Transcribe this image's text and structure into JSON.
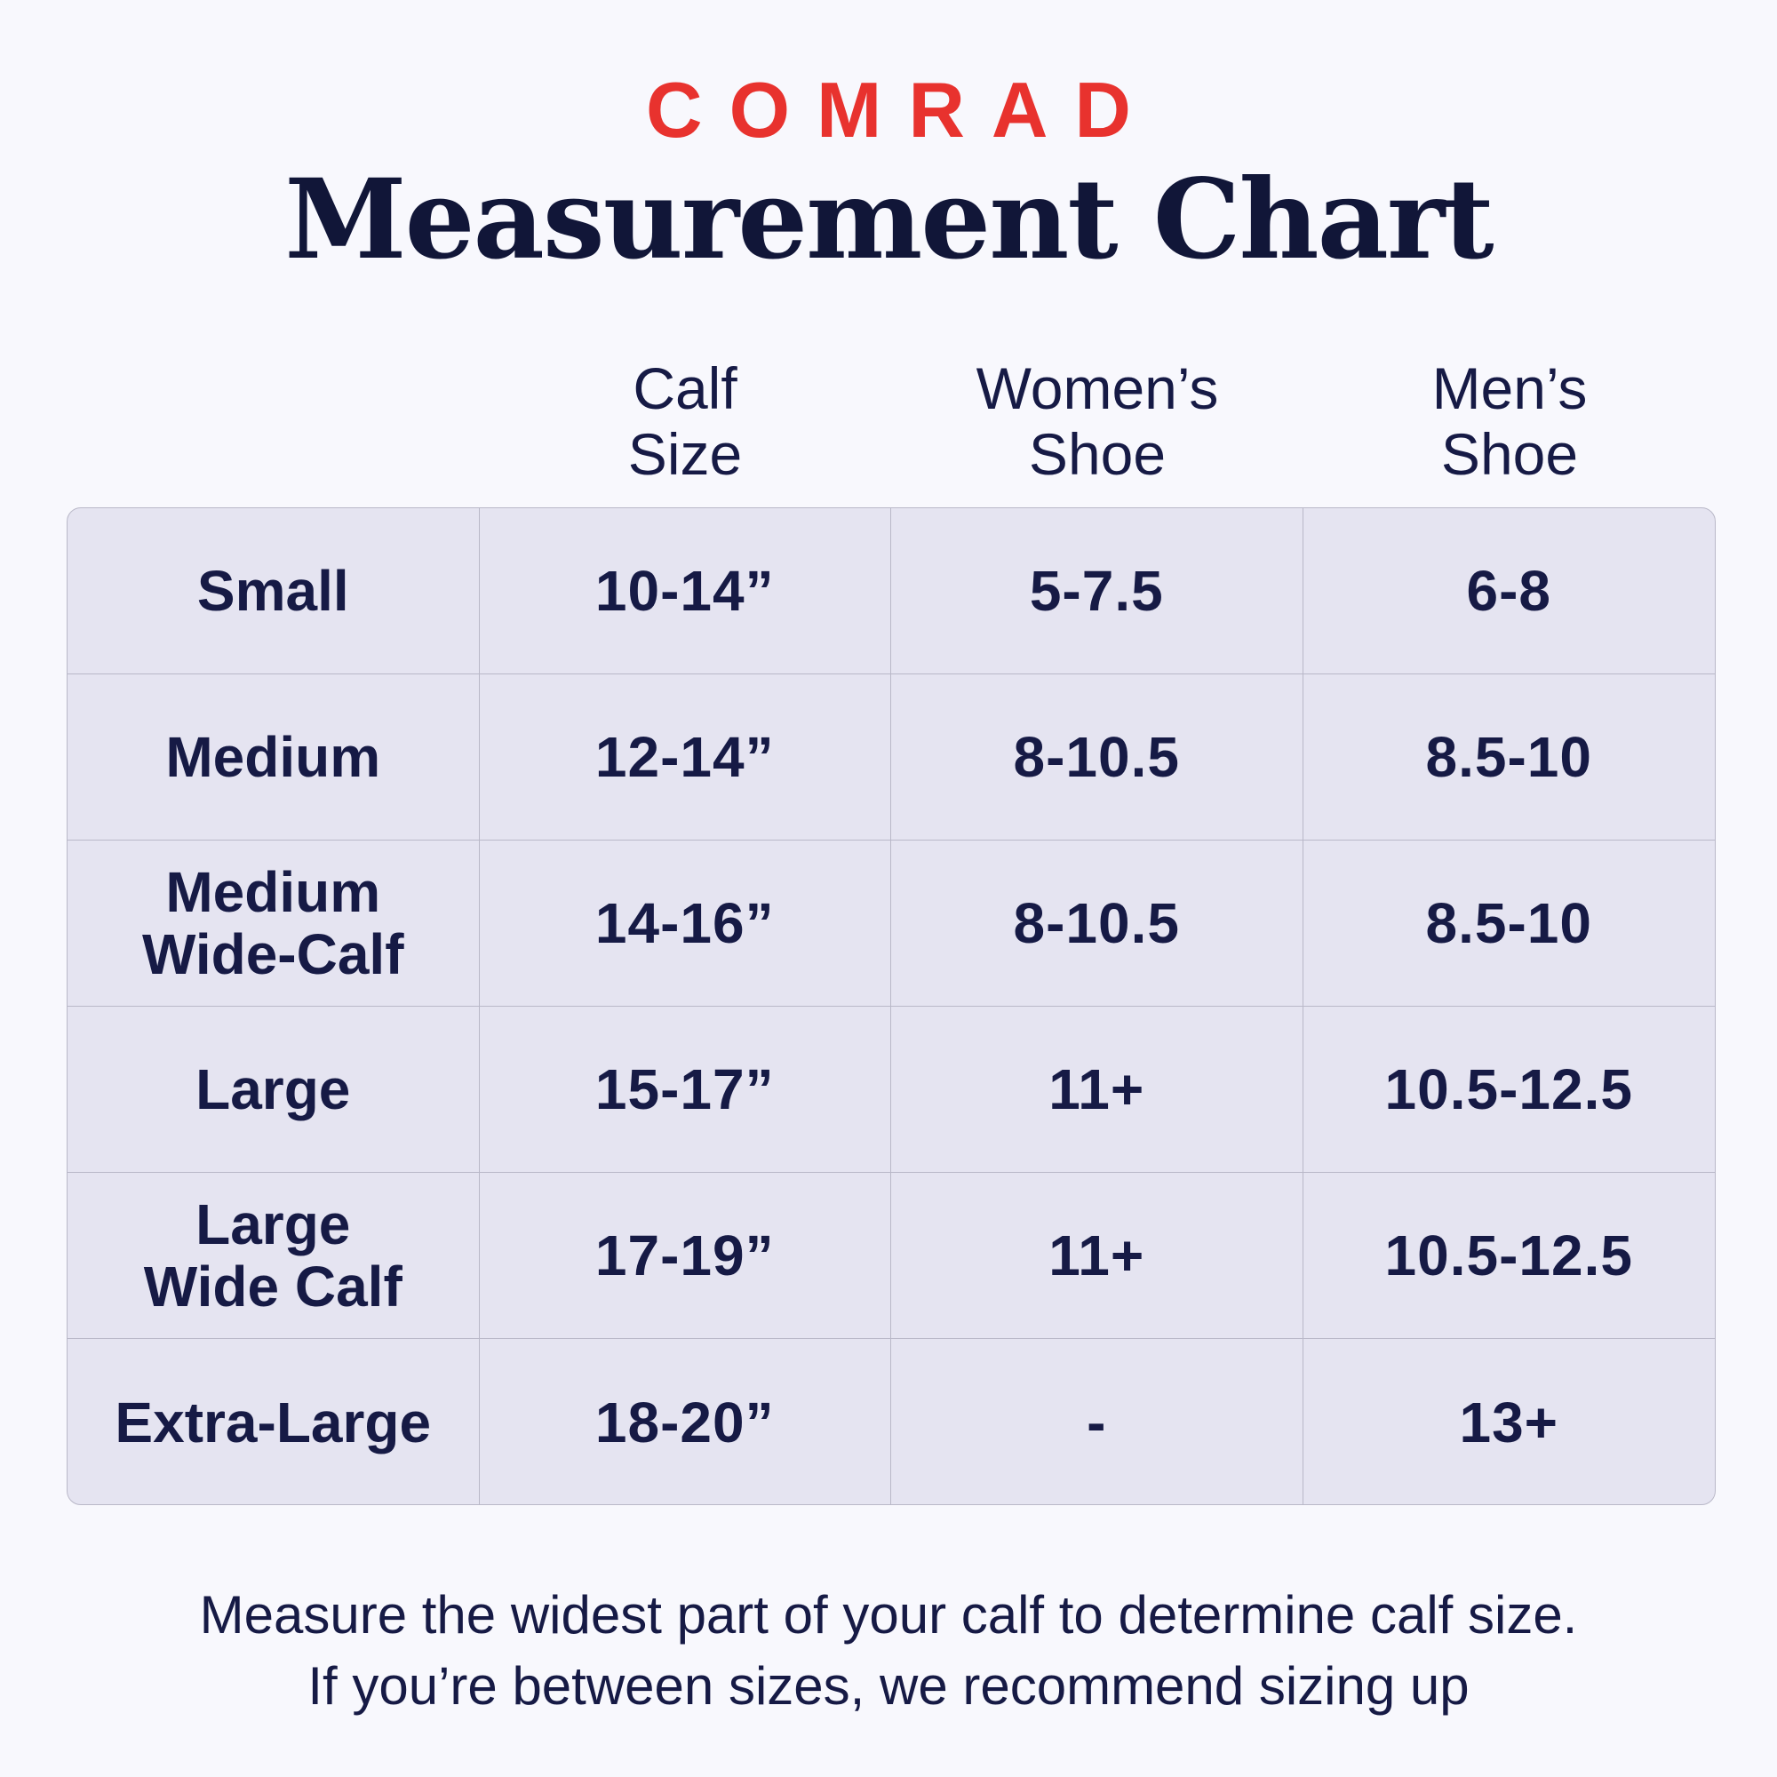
{
  "brand": "COMRAD",
  "title": "Measurement Chart",
  "headers": [
    {
      "line1": "Calf",
      "line2": "Size"
    },
    {
      "line1": "Women’s",
      "line2": "Shoe"
    },
    {
      "line1": "Men’s",
      "line2": "Shoe"
    }
  ],
  "rows": [
    {
      "size": "Small",
      "calf": "10-14”",
      "womens": "5-7.5",
      "mens": "6-8"
    },
    {
      "size": "Medium",
      "calf": "12-14”",
      "womens": "8-10.5",
      "mens": "8.5-10"
    },
    {
      "size": "Medium\nWide-Calf",
      "calf": "14-16”",
      "womens": "8-10.5",
      "mens": "8.5-10"
    },
    {
      "size": "Large",
      "calf": "15-17”",
      "womens": "11+",
      "mens": "10.5-12.5"
    },
    {
      "size": "Large\nWide Calf",
      "calf": "17-19”",
      "womens": "11+",
      "mens": "10.5-12.5"
    },
    {
      "size": "Extra-Large",
      "calf": "18-20”",
      "womens": "-",
      "mens": "13+"
    }
  ],
  "footnote": {
    "line1": "Measure the widest part of your calf to determine calf size.",
    "line2": "If you’re between sizes, we recommend sizing up"
  }
}
